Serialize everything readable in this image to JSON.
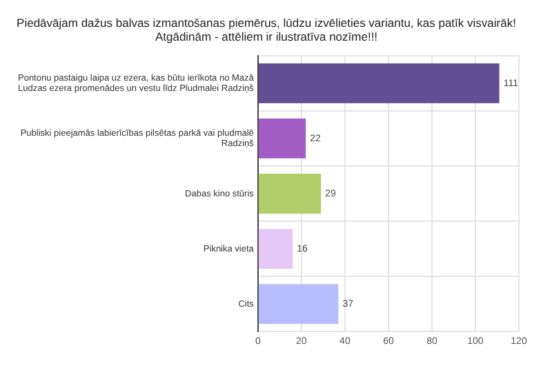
{
  "chart_data": {
    "type": "bar",
    "orientation": "horizontal",
    "title": [
      "Piedāvājam dažus balvas izmantošanas piemērus, lūdzu izvēlieties variantu, kas patīk visvairāk!",
      "Atgādinām - attēliem ir ilustratīva nozīme!!!"
    ],
    "categories": [
      "Pontonu pastaigu laipa uz ezera, kas būtu ierīkota no Mazā Ludzas ezera promenādes un vestu līdz Pludmalei Radziņš",
      "Publiski pieejamās labierīcības pilsētas parkā vai pludmalē Radziņš",
      "Dabas kino stūris",
      "Piknika vieta",
      "Cits"
    ],
    "values": [
      111,
      22,
      29,
      16,
      37
    ],
    "colors": [
      "#634f94",
      "#a35cc4",
      "#b0cd6a",
      "#e5c8f8",
      "#b7bcfc"
    ],
    "xlim": [
      0,
      120
    ],
    "xticks": [
      0,
      20,
      40,
      60,
      80,
      100,
      120
    ],
    "grid": true,
    "data_labels": true
  }
}
